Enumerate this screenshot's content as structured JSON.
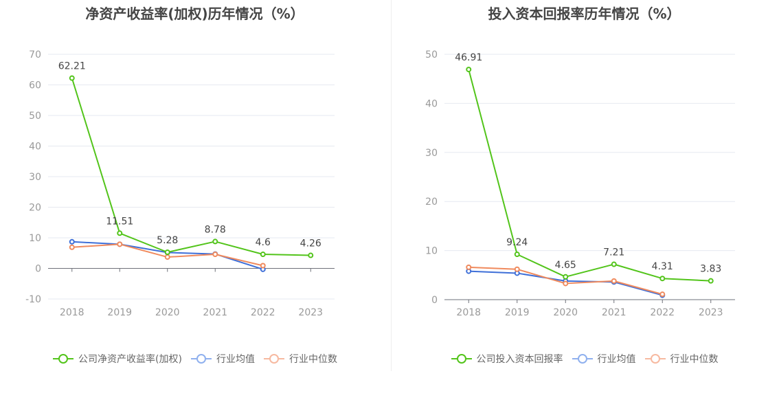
{
  "chart_data": [
    {
      "type": "line",
      "title": "净资产收益率(加权)历年情况（%）",
      "categories": [
        "2018",
        "2019",
        "2020",
        "2021",
        "2022",
        "2023"
      ],
      "ylim": [
        -10,
        70
      ],
      "yticks": [
        -10,
        0,
        10,
        20,
        30,
        40,
        50,
        60,
        70
      ],
      "grid": true,
      "legend_position": "bottom",
      "series": [
        {
          "name": "公司净资产收益率(加权)",
          "color": "#52c41a",
          "values": [
            62.21,
            11.51,
            5.28,
            8.78,
            4.6,
            4.26
          ],
          "labels": [
            "62.21",
            "11.51",
            "5.28",
            "8.78",
            "4.6",
            "4.26"
          ]
        },
        {
          "name": "行业均值",
          "color": "#3e6fd8",
          "values": [
            8.7,
            7.9,
            5.2,
            4.7,
            -0.3,
            null
          ]
        },
        {
          "name": "行业中位数",
          "color": "#f08a5d",
          "values": [
            6.9,
            7.9,
            3.7,
            4.6,
            0.9,
            null
          ]
        }
      ],
      "legend": [
        {
          "name": "公司净资产收益率(加权)",
          "color": "#52c41a"
        },
        {
          "name": "行业均值",
          "color": "#8fb0ee"
        },
        {
          "name": "行业中位数",
          "color": "#f7b9a0"
        }
      ]
    },
    {
      "type": "line",
      "title": "投入资本回报率历年情况（%）",
      "categories": [
        "2018",
        "2019",
        "2020",
        "2021",
        "2022",
        "2023"
      ],
      "ylim": [
        0,
        50
      ],
      "yticks": [
        0,
        10,
        20,
        30,
        40,
        50
      ],
      "grid": true,
      "legend_position": "bottom",
      "series": [
        {
          "name": "公司投入资本回报率",
          "color": "#52c41a",
          "values": [
            46.91,
            9.24,
            4.65,
            7.21,
            4.31,
            3.83
          ],
          "labels": [
            "46.91",
            "9.24",
            "4.65",
            "7.21",
            "4.31",
            "3.83"
          ]
        },
        {
          "name": "行业均值",
          "color": "#3e6fd8",
          "values": [
            5.8,
            5.4,
            3.8,
            3.6,
            0.9,
            null
          ]
        },
        {
          "name": "行业中位数",
          "color": "#f08a5d",
          "values": [
            6.6,
            6.2,
            3.3,
            3.8,
            1.1,
            null
          ]
        }
      ],
      "legend": [
        {
          "name": "公司投入资本回报率",
          "color": "#52c41a"
        },
        {
          "name": "行业均值",
          "color": "#8fb0ee"
        },
        {
          "name": "行业中位数",
          "color": "#f7b9a0"
        }
      ]
    }
  ]
}
